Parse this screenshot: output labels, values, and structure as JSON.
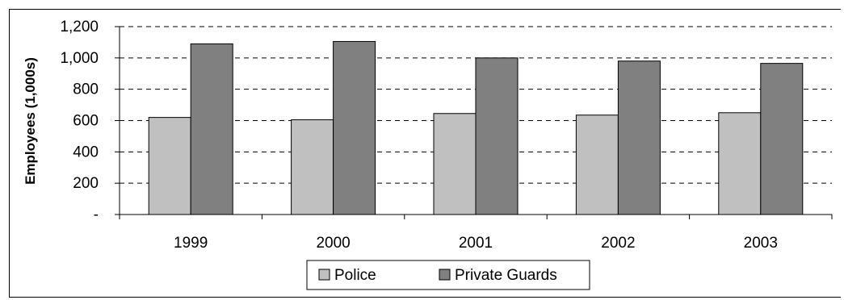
{
  "colors": {
    "police": "#c0c0c0",
    "private_guards": "#808080",
    "gridline": "#000000",
    "axis": "#000000"
  },
  "chart_data": {
    "type": "bar",
    "categories": [
      "1999",
      "2000",
      "2001",
      "2002",
      "2003"
    ],
    "series": [
      {
        "name": "Police",
        "values": [
          620,
          605,
          645,
          635,
          650
        ]
      },
      {
        "name": "Private Guards",
        "values": [
          1090,
          1105,
          1000,
          980,
          965
        ]
      }
    ],
    "title": "",
    "xlabel": "",
    "ylabel": "Employees (1,000s)",
    "ylim": [
      0,
      1200
    ],
    "yticks": [
      0,
      200,
      400,
      600,
      800,
      1000,
      1200
    ],
    "ytick_labels": [
      "-",
      "200",
      "400",
      "600",
      "800",
      "1,000",
      "1,200"
    ],
    "grid": "horizontal dashed",
    "legend": "bottom-center"
  }
}
